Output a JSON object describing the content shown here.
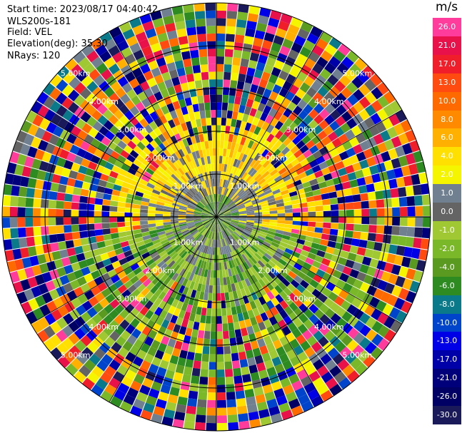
{
  "header": {
    "start_time": "Start time: 2023/08/17 04:40:42",
    "site": "WLS200s-181",
    "field": "Field: VEL",
    "elevation": "Elevation(deg): 35.30",
    "nrays": "NRays: 120"
  },
  "colorbar": {
    "unit": "m/s",
    "ticks": [
      "26.0",
      "21.0",
      "17.0",
      "13.0",
      "10.0",
      "8.0",
      "6.0",
      "4.0",
      "2.0",
      "1.0",
      "0.0",
      "-1.0",
      "-2.0",
      "-4.0",
      "-6.0",
      "-8.0",
      "-10.0",
      "-13.0",
      "-17.0",
      "-21.0",
      "-26.0",
      "-30.0"
    ],
    "colors": [
      "#ff3c9b",
      "#e8114a",
      "#f01e2a",
      "#ff4a10",
      "#ff6a00",
      "#ff8a00",
      "#ffb000",
      "#ffe000",
      "#f5f500",
      "#708090",
      "#646464",
      "#a0c832",
      "#7ab82a",
      "#5a9a20",
      "#2e8b22",
      "#0a7a8a",
      "#0044cc",
      "#0000e6",
      "#0000a8",
      "#00007a",
      "#000064",
      "#1a1a5a"
    ]
  },
  "range_labels": {
    "inner": "1.00km",
    "ring2": "2.00km",
    "ring3": "3.00km",
    "ring4": "4.00km",
    "ring5": "5.00km"
  },
  "ppi": {
    "nrays": 120,
    "max_range_km": 5
  }
}
